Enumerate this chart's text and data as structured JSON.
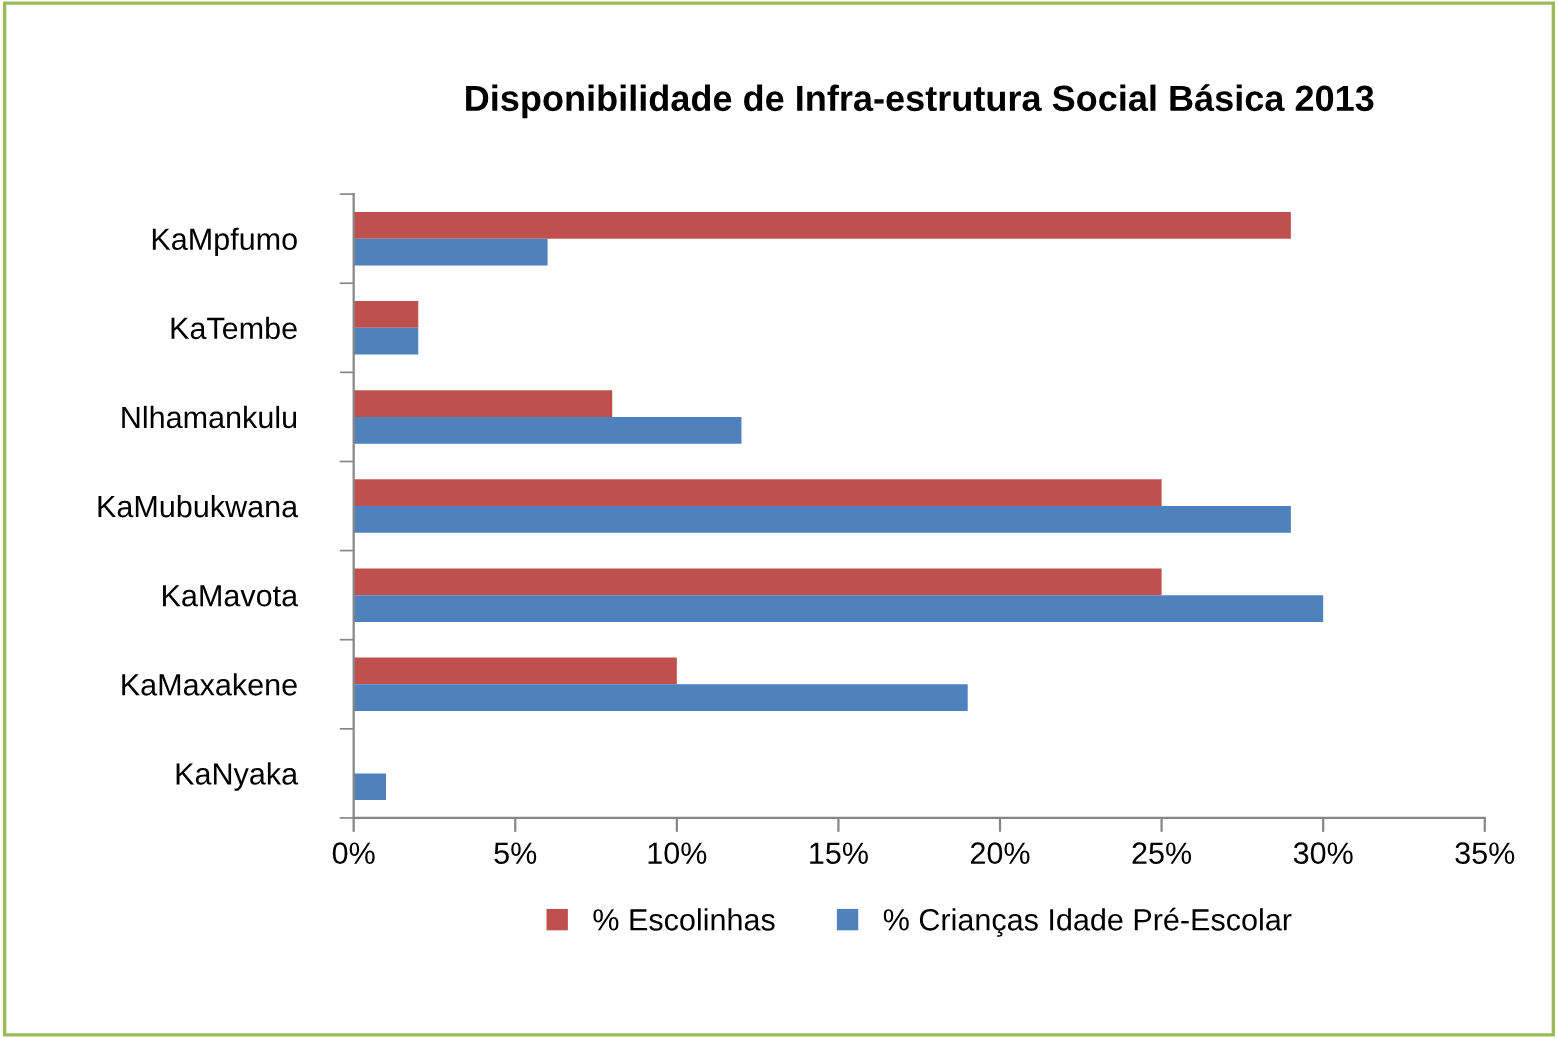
{
  "chart_data": {
    "type": "bar",
    "orientation": "horizontal",
    "title": "Disponibilidade de Infra-estrutura Social Básica 2013",
    "categories": [
      "KaMpfumo",
      "KaTembe",
      "Nlhamankulu",
      "KaMubukwana",
      "KaMavota",
      "KaMaxakene",
      "KaNyaka"
    ],
    "series": [
      {
        "name": "% Escolinhas",
        "color": "#c0504d",
        "values": [
          29,
          2,
          8,
          25,
          25,
          10,
          0
        ]
      },
      {
        "name": "% Crianças Idade Pré-Escolar",
        "color": "#4f81bd",
        "values": [
          6,
          2,
          12,
          29,
          30,
          19,
          1
        ]
      }
    ],
    "xlim": [
      0,
      35
    ],
    "xticks": [
      {
        "value": 0,
        "label": "0%"
      },
      {
        "value": 5,
        "label": "5%"
      },
      {
        "value": 10,
        "label": "10%"
      },
      {
        "value": 15,
        "label": "15%"
      },
      {
        "value": 20,
        "label": "20%"
      },
      {
        "value": 25,
        "label": "25%"
      },
      {
        "value": 30,
        "label": "30%"
      },
      {
        "value": 35,
        "label": "35%"
      }
    ],
    "grid": false,
    "legend": "bottom"
  }
}
